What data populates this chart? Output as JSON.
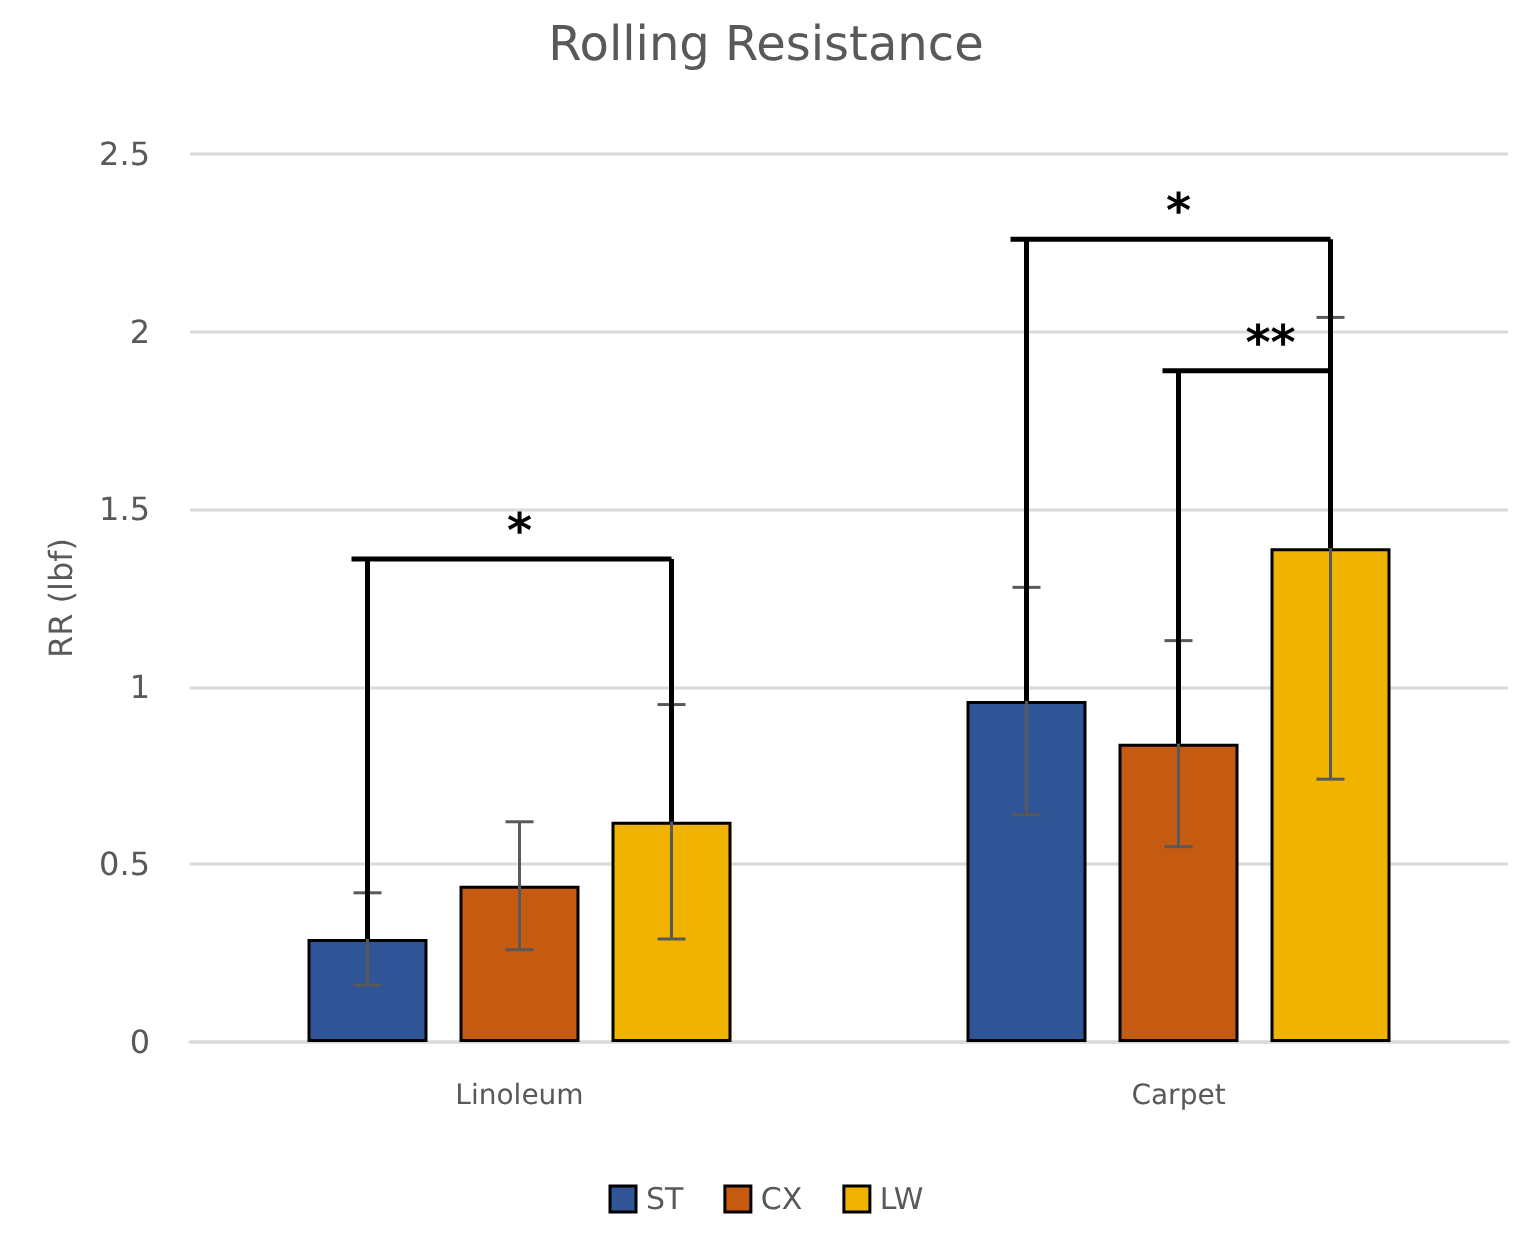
{
  "chart_data": {
    "type": "bar",
    "title": "Rolling Resistance",
    "ylabel": "RR (lbf)",
    "categories": [
      "Linoleum",
      "Carpet"
    ],
    "series": [
      {
        "name": "ST",
        "color": "#2f5597",
        "values": [
          0.29,
          0.96
        ],
        "errors": [
          0.13,
          0.32
        ]
      },
      {
        "name": "CX",
        "color": "#c55a11",
        "values": [
          0.44,
          0.84
        ],
        "errors": [
          0.18,
          0.29
        ]
      },
      {
        "name": "LW",
        "color": "#f0b400",
        "values": [
          0.62,
          1.39
        ],
        "errors": [
          0.33,
          0.65
        ]
      }
    ],
    "ylim": [
      0,
      2.5
    ],
    "yticks": [
      0,
      0.5,
      1,
      1.5,
      2,
      2.5
    ],
    "grid": "y",
    "legend": "bottom",
    "annotations": [
      "*",
      "*",
      "**"
    ]
  }
}
